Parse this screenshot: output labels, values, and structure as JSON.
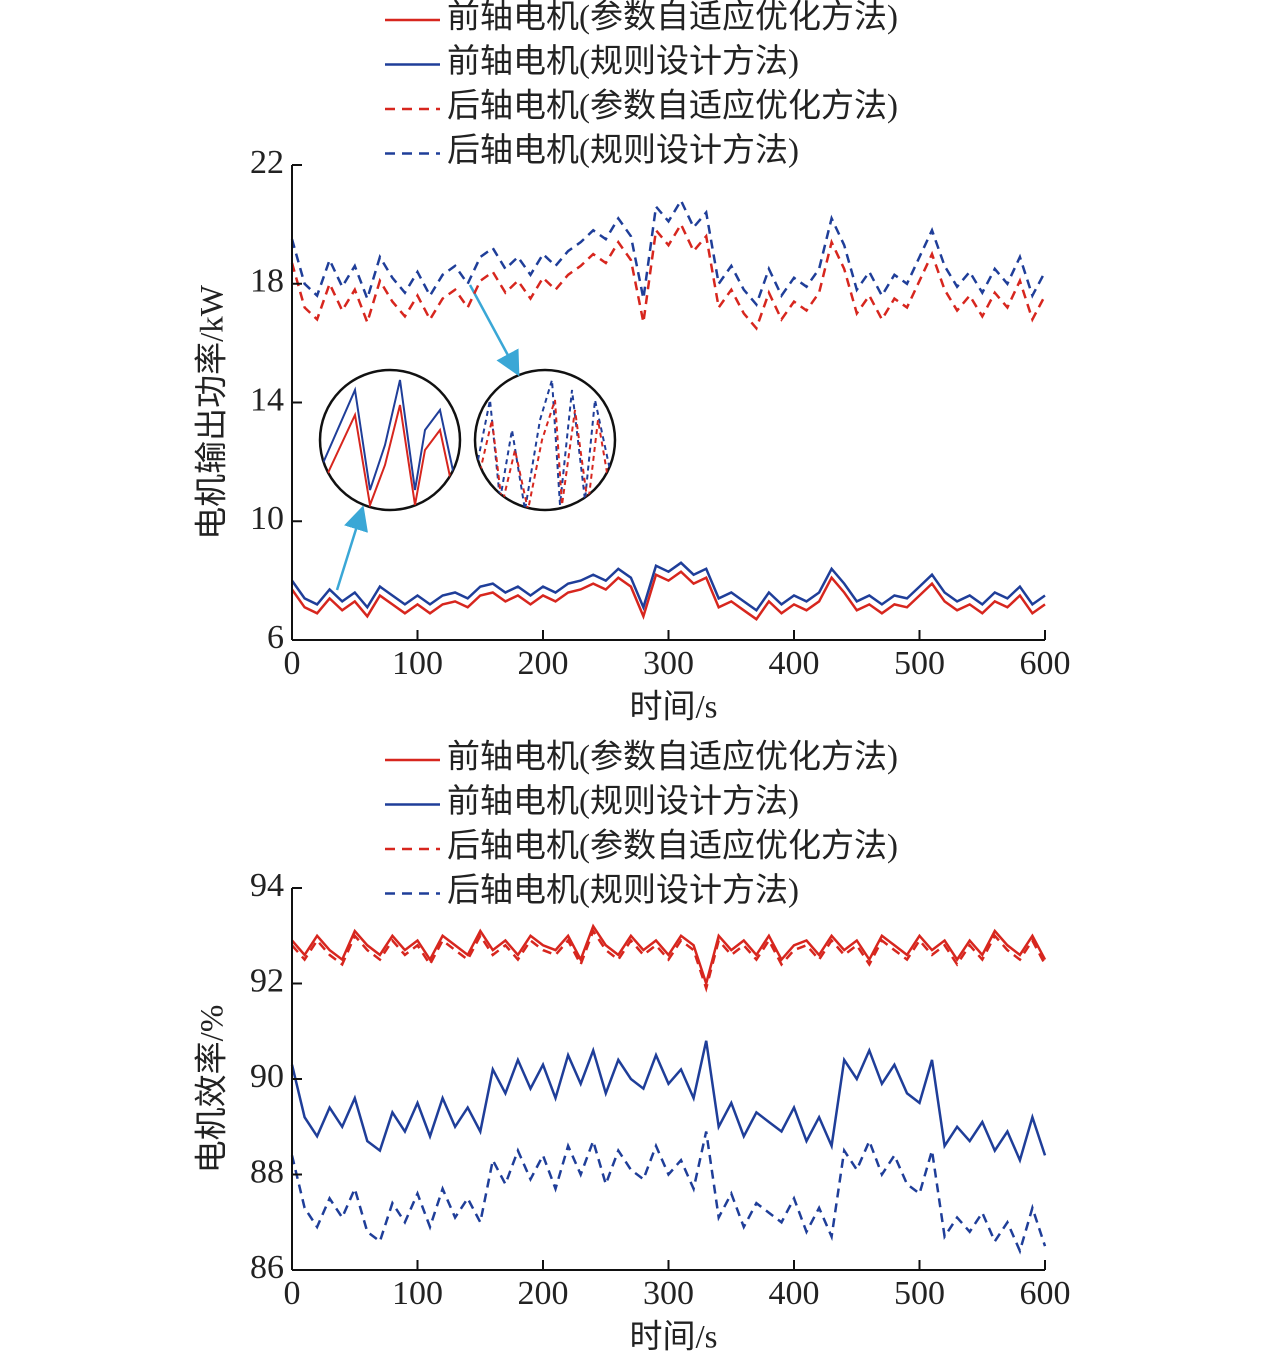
{
  "chart_data": [
    {
      "type": "line",
      "xlabel": "时间/s",
      "ylabel": "电机输出功率/kW",
      "xlim": [
        0,
        600
      ],
      "xticks": [
        0,
        100,
        200,
        300,
        400,
        500,
        600
      ],
      "ylim": [
        6,
        22
      ],
      "yticks": [
        6,
        10,
        14,
        18,
        22
      ],
      "x": [
        0,
        10,
        20,
        30,
        40,
        50,
        60,
        70,
        80,
        90,
        100,
        110,
        120,
        130,
        140,
        150,
        160,
        170,
        180,
        190,
        200,
        210,
        220,
        230,
        240,
        250,
        260,
        270,
        280,
        290,
        300,
        310,
        320,
        330,
        340,
        350,
        360,
        370,
        380,
        390,
        400,
        410,
        420,
        430,
        440,
        450,
        460,
        470,
        480,
        490,
        500,
        510,
        520,
        530,
        540,
        550,
        560,
        570,
        580,
        590,
        600
      ],
      "series": [
        {
          "name": "前轴电机(参数自适应优化方法)",
          "color": "#d7261e",
          "linestyle": "solid",
          "values": [
            7.7,
            7.1,
            6.9,
            7.4,
            7.0,
            7.3,
            6.8,
            7.5,
            7.2,
            6.9,
            7.2,
            6.9,
            7.2,
            7.3,
            7.1,
            7.5,
            7.6,
            7.3,
            7.5,
            7.2,
            7.5,
            7.3,
            7.6,
            7.7,
            7.9,
            7.7,
            8.1,
            7.8,
            6.8,
            8.2,
            8.0,
            8.3,
            7.9,
            8.1,
            7.1,
            7.3,
            7.0,
            6.7,
            7.3,
            6.9,
            7.2,
            7.0,
            7.3,
            8.1,
            7.6,
            7.0,
            7.2,
            6.9,
            7.2,
            7.1,
            7.5,
            7.9,
            7.3,
            7.0,
            7.2,
            6.9,
            7.3,
            7.1,
            7.5,
            6.9,
            7.2
          ]
        },
        {
          "name": "前轴电机(规则设计方法)",
          "color": "#1f3e99",
          "linestyle": "solid",
          "values": [
            8.0,
            7.4,
            7.2,
            7.7,
            7.3,
            7.6,
            7.1,
            7.8,
            7.5,
            7.2,
            7.5,
            7.2,
            7.5,
            7.6,
            7.4,
            7.8,
            7.9,
            7.6,
            7.8,
            7.5,
            7.8,
            7.6,
            7.9,
            8.0,
            8.2,
            8.0,
            8.4,
            8.1,
            7.1,
            8.5,
            8.3,
            8.6,
            8.2,
            8.4,
            7.4,
            7.6,
            7.3,
            7.0,
            7.6,
            7.2,
            7.5,
            7.3,
            7.6,
            8.4,
            7.9,
            7.3,
            7.5,
            7.2,
            7.5,
            7.4,
            7.8,
            8.2,
            7.6,
            7.3,
            7.5,
            7.2,
            7.6,
            7.4,
            7.8,
            7.2,
            7.5
          ]
        },
        {
          "name": "后轴电机(参数自适应优化方法)",
          "color": "#d7261e",
          "linestyle": "dashed",
          "values": [
            18.7,
            17.2,
            16.8,
            18.0,
            17.1,
            17.8,
            16.7,
            18.1,
            17.4,
            16.9,
            17.6,
            16.8,
            17.5,
            17.8,
            17.2,
            18.1,
            18.4,
            17.7,
            18.1,
            17.5,
            18.2,
            17.8,
            18.3,
            18.6,
            19.0,
            18.7,
            19.4,
            18.8,
            16.7,
            19.8,
            19.3,
            20.0,
            19.1,
            19.6,
            17.2,
            17.8,
            17.0,
            16.5,
            17.7,
            16.8,
            17.4,
            17.1,
            17.7,
            19.4,
            18.5,
            17.0,
            17.6,
            16.8,
            17.5,
            17.2,
            18.1,
            19.0,
            17.8,
            17.1,
            17.6,
            16.9,
            17.7,
            17.2,
            18.1,
            16.8,
            17.6
          ]
        },
        {
          "name": "后轴电机(规则设计方法)",
          "color": "#1f3e99",
          "linestyle": "dashed",
          "values": [
            19.5,
            18.0,
            17.6,
            18.8,
            17.9,
            18.6,
            17.5,
            18.9,
            18.2,
            17.7,
            18.4,
            17.6,
            18.3,
            18.6,
            18.0,
            18.9,
            19.2,
            18.5,
            18.9,
            18.3,
            19.0,
            18.6,
            19.1,
            19.4,
            19.8,
            19.5,
            20.2,
            19.6,
            17.5,
            20.6,
            20.1,
            20.8,
            19.9,
            20.4,
            18.0,
            18.6,
            17.8,
            17.3,
            18.5,
            17.6,
            18.2,
            17.9,
            18.5,
            20.2,
            19.3,
            17.8,
            18.4,
            17.6,
            18.3,
            18.0,
            18.9,
            19.8,
            18.6,
            17.9,
            18.4,
            17.7,
            18.5,
            18.0,
            18.9,
            17.6,
            18.4
          ]
        }
      ]
    },
    {
      "type": "line",
      "xlabel": "时间/s",
      "ylabel": "电机效率/%",
      "xlim": [
        0,
        600
      ],
      "xticks": [
        0,
        100,
        200,
        300,
        400,
        500,
        600
      ],
      "ylim": [
        86,
        94
      ],
      "yticks": [
        86,
        88,
        90,
        92,
        94
      ],
      "x": [
        0,
        10,
        20,
        30,
        40,
        50,
        60,
        70,
        80,
        90,
        100,
        110,
        120,
        130,
        140,
        150,
        160,
        170,
        180,
        190,
        200,
        210,
        220,
        230,
        240,
        250,
        260,
        270,
        280,
        290,
        300,
        310,
        320,
        330,
        340,
        350,
        360,
        370,
        380,
        390,
        400,
        410,
        420,
        430,
        440,
        450,
        460,
        470,
        480,
        490,
        500,
        510,
        520,
        530,
        540,
        550,
        560,
        570,
        580,
        590,
        600
      ],
      "series": [
        {
          "name": "前轴电机(参数自适应优化方法)",
          "color": "#d7261e",
          "linestyle": "solid",
          "values": [
            92.9,
            92.6,
            93.0,
            92.7,
            92.5,
            93.1,
            92.8,
            92.6,
            93.0,
            92.7,
            92.9,
            92.5,
            93.0,
            92.8,
            92.6,
            93.1,
            92.7,
            92.9,
            92.6,
            93.0,
            92.8,
            92.7,
            93.0,
            92.5,
            93.2,
            92.8,
            92.6,
            93.0,
            92.7,
            92.9,
            92.6,
            93.0,
            92.8,
            92.0,
            93.0,
            92.7,
            92.9,
            92.6,
            93.0,
            92.5,
            92.8,
            92.9,
            92.6,
            93.0,
            92.7,
            92.9,
            92.5,
            93.0,
            92.8,
            92.6,
            93.0,
            92.7,
            92.9,
            92.5,
            92.9,
            92.6,
            93.1,
            92.8,
            92.6,
            93.0,
            92.5
          ]
        },
        {
          "name": "前轴电机(规则设计方法)",
          "color": "#1f3e99",
          "linestyle": "solid",
          "values": [
            90.3,
            89.2,
            88.8,
            89.4,
            89.0,
            89.6,
            88.7,
            88.5,
            89.3,
            88.9,
            89.5,
            88.8,
            89.6,
            89.0,
            89.4,
            88.9,
            90.2,
            89.7,
            90.4,
            89.8,
            90.3,
            89.6,
            90.5,
            89.9,
            90.6,
            89.7,
            90.4,
            90.0,
            89.8,
            90.5,
            89.9,
            90.2,
            89.6,
            90.8,
            89.0,
            89.5,
            88.8,
            89.3,
            89.1,
            88.9,
            89.4,
            88.7,
            89.2,
            88.6,
            90.4,
            90.0,
            90.6,
            89.9,
            90.3,
            89.7,
            89.5,
            90.4,
            88.6,
            89.0,
            88.7,
            89.1,
            88.5,
            88.9,
            88.3,
            89.2,
            88.4
          ]
        },
        {
          "name": "后轴电机(参数自适应优化方法)",
          "color": "#d7261e",
          "linestyle": "dashed",
          "values": [
            92.8,
            92.5,
            92.9,
            92.6,
            92.4,
            93.0,
            92.7,
            92.5,
            92.9,
            92.6,
            92.8,
            92.4,
            92.9,
            92.7,
            92.5,
            93.0,
            92.6,
            92.8,
            92.5,
            92.9,
            92.7,
            92.6,
            92.9,
            92.4,
            93.1,
            92.7,
            92.5,
            92.9,
            92.6,
            92.8,
            92.5,
            92.9,
            92.7,
            91.9,
            92.9,
            92.6,
            92.8,
            92.5,
            92.9,
            92.4,
            92.7,
            92.8,
            92.5,
            92.9,
            92.6,
            92.8,
            92.4,
            92.9,
            92.7,
            92.5,
            92.9,
            92.6,
            92.8,
            92.4,
            92.8,
            92.5,
            93.0,
            92.7,
            92.5,
            92.9,
            92.4
          ]
        },
        {
          "name": "后轴电机(规则设计方法)",
          "color": "#1f3e99",
          "linestyle": "dashed",
          "values": [
            88.4,
            87.3,
            86.9,
            87.5,
            87.1,
            87.7,
            86.8,
            86.6,
            87.4,
            87.0,
            87.6,
            86.9,
            87.7,
            87.1,
            87.5,
            87.0,
            88.3,
            87.8,
            88.5,
            87.9,
            88.4,
            87.7,
            88.6,
            88.0,
            88.7,
            87.8,
            88.5,
            88.1,
            87.9,
            88.6,
            88.0,
            88.3,
            87.7,
            88.9,
            87.1,
            87.6,
            86.9,
            87.4,
            87.2,
            87.0,
            87.5,
            86.8,
            87.3,
            86.7,
            88.5,
            88.1,
            88.7,
            88.0,
            88.4,
            87.8,
            87.6,
            88.5,
            86.7,
            87.1,
            86.8,
            87.2,
            86.6,
            87.0,
            86.4,
            87.3,
            86.5
          ]
        }
      ]
    }
  ]
}
